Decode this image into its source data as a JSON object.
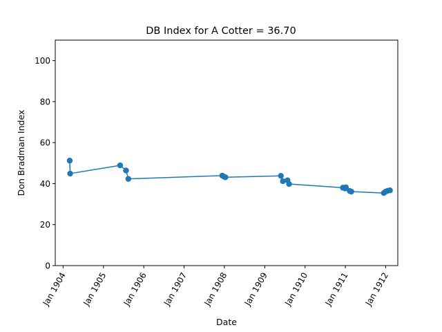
{
  "chart_data": {
    "type": "line",
    "title": "DB Index for A Cotter = 36.70",
    "xlabel": "Date",
    "ylabel": "Don Bradman Index",
    "ylim": [
      0,
      110
    ],
    "xlim": [
      "1903-10-22",
      "1912-04-20"
    ],
    "yticks": [
      0,
      20,
      40,
      60,
      80,
      100
    ],
    "xticks": [
      {
        "date": "1904-01-01",
        "label": "Jan 1904"
      },
      {
        "date": "1905-01-01",
        "label": "Jan 1905"
      },
      {
        "date": "1906-01-01",
        "label": "Jan 1906"
      },
      {
        "date": "1907-01-01",
        "label": "Jan 1907"
      },
      {
        "date": "1908-01-01",
        "label": "Jan 1908"
      },
      {
        "date": "1909-01-01",
        "label": "Jan 1909"
      },
      {
        "date": "1910-01-01",
        "label": "Jan 1910"
      },
      {
        "date": "1911-01-01",
        "label": "Jan 1911"
      },
      {
        "date": "1912-01-01",
        "label": "Jan 1912"
      }
    ],
    "grid": false,
    "color": "#1f77b4",
    "series": [
      {
        "points": [
          {
            "x": "1904-03-01",
            "y": 51.2
          },
          {
            "x": "1904-03-05",
            "y": 44.9
          },
          {
            "x": "1905-06-01",
            "y": 48.9
          },
          {
            "x": "1905-07-24",
            "y": 46.4
          },
          {
            "x": "1905-08-14",
            "y": 42.3
          },
          {
            "x": "1907-12-13",
            "y": 43.9
          },
          {
            "x": "1908-01-01",
            "y": 43.3
          },
          {
            "x": "1908-01-10",
            "y": 43.1
          },
          {
            "x": "1909-05-27",
            "y": 43.8
          },
          {
            "x": "1909-06-14",
            "y": 41.2
          },
          {
            "x": "1909-07-26",
            "y": 41.6
          },
          {
            "x": "1909-08-09",
            "y": 39.8
          },
          {
            "x": "1910-12-09",
            "y": 38.0
          },
          {
            "x": "1910-12-30",
            "y": 37.6
          },
          {
            "x": "1911-01-06",
            "y": 38.2
          },
          {
            "x": "1911-02-10",
            "y": 36.4
          },
          {
            "x": "1911-02-24",
            "y": 36.1
          },
          {
            "x": "1911-12-15",
            "y": 35.4
          },
          {
            "x": "1912-01-01",
            "y": 36.1
          },
          {
            "x": "1912-01-20",
            "y": 36.5
          },
          {
            "x": "1912-02-09",
            "y": 36.7
          }
        ]
      }
    ]
  }
}
